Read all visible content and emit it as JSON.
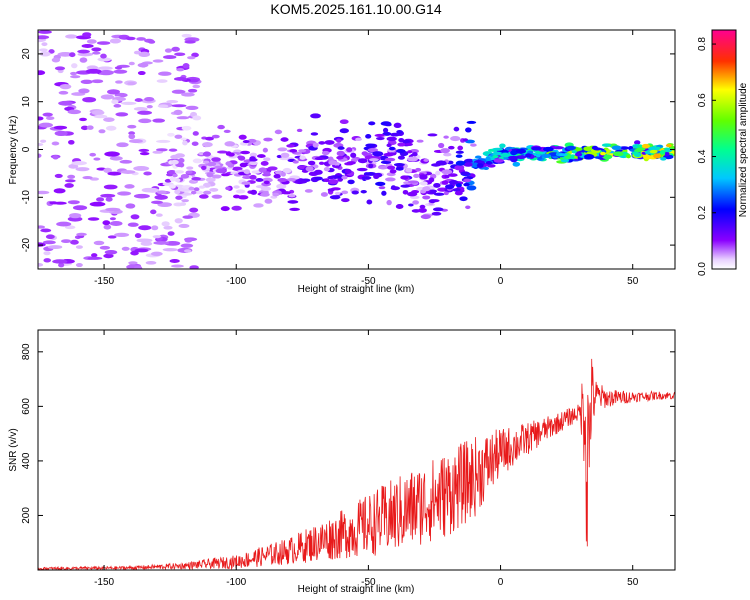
{
  "title": "KOM5.2025.161.10.00.G14",
  "chart_data": [
    {
      "type": "heatmap",
      "title": "KOM5.2025.161.10.00.G14",
      "xlabel": "Height of straight line (km)",
      "ylabel": "Frequency (Hz)",
      "xlim": [
        -175,
        66
      ],
      "ylim": [
        -25,
        25
      ],
      "xticks": [
        -150,
        -100,
        -50,
        0,
        50
      ],
      "yticks": [
        -20,
        -10,
        0,
        10,
        20
      ],
      "colorbar": {
        "label": "Normalized spectral amplitude",
        "range": [
          0,
          0.85
        ],
        "ticks": [
          0.0,
          0.2,
          0.4,
          0.6,
          0.8
        ],
        "colormap": "rainbow (white-purple-blue-cyan-green-yellow-red-magenta)"
      },
      "ridge": {
        "x": [
          -120,
          -100,
          -80,
          -60,
          -40,
          -30,
          -20,
          -10,
          0,
          20,
          40,
          66
        ],
        "frequency": [
          -3,
          -4,
          -4,
          -3.5,
          -2,
          -6,
          -5,
          -3,
          -1,
          -1,
          -0.5,
          -0.5
        ],
        "amplitude": [
          0.08,
          0.12,
          0.15,
          0.18,
          0.2,
          0.12,
          0.18,
          0.3,
          0.45,
          0.55,
          0.65,
          0.7
        ]
      },
      "grid": false
    },
    {
      "type": "line",
      "xlabel": "Height of straight line (km)",
      "ylabel": "SNR (v/v)",
      "xlim": [
        -175,
        66
      ],
      "ylim": [
        0,
        880
      ],
      "xticks": [
        -150,
        -100,
        -50,
        0,
        50
      ],
      "yticks": [
        200,
        400,
        600,
        800
      ],
      "color": "#e8191a",
      "envelope": {
        "x": [
          -175,
          -140,
          -120,
          -100,
          -80,
          -60,
          -40,
          -20,
          -10,
          0,
          10,
          20,
          30,
          32,
          33,
          34,
          36,
          40,
          50,
          60,
          66
        ],
        "mean": [
          5,
          8,
          15,
          30,
          70,
          130,
          200,
          280,
          340,
          430,
          480,
          530,
          580,
          600,
          300,
          620,
          640,
          630,
          635,
          640,
          640
        ],
        "spread": [
          5,
          6,
          12,
          25,
          50,
          90,
          140,
          160,
          150,
          90,
          60,
          40,
          30,
          260,
          580,
          200,
          60,
          35,
          20,
          15,
          15
        ]
      },
      "grid": false
    }
  ]
}
